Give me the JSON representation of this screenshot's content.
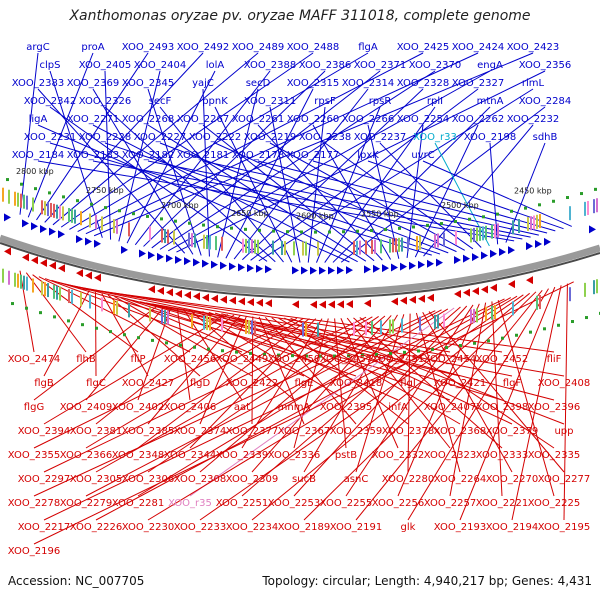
{
  "title": "Xanthomonas oryzae pv. oryzae MAFF 311018, complete genome",
  "accession": "Accession: NC_007705",
  "topology": "Topology: circular; Length: 4,940,217 bp; Genes: 4,431",
  "colors": {
    "forward": "#0000cc",
    "reverse": "#d40000",
    "rna_fwd": "#00aacc",
    "rna_rev": "#e080c0",
    "backbone": "#888888"
  },
  "ticks": [
    "2800 kbp",
    "2750 kbp",
    "2700 kbp",
    "2650 kbp",
    "2600 kbp",
    "2550 kbp",
    "2500 kbp",
    "2450 kbp"
  ],
  "forward_labels": [
    "argC",
    "proA",
    "XOO_2493",
    "XOO_2492",
    "XOO_2489",
    "XOO_2488",
    "flgA",
    "XOO_2425",
    "XOO_2424",
    "XOO_2423",
    "clpS",
    "XOO_2405",
    "XOO_2404",
    "lolA",
    "XOO_2388",
    "XOO_2386",
    "XOO_2371",
    "XOO_2370",
    "engA",
    "XOO_2356",
    "XOO_2383",
    "XOO_2369",
    "XOO_2345",
    "yajC",
    "secD",
    "XOO_2315",
    "XOO_2314",
    "XOO_2328",
    "XOO_2327",
    "rlmL",
    "XOO_2342",
    "XOO_2326",
    "secF",
    "ppnK",
    "XOO_2311",
    "rpsF",
    "rpsR",
    "rplI",
    "mtnA",
    "XOO_2284",
    "ligA",
    "XOO_2271",
    "XOO_2268",
    "XOO_2267",
    "XOO_2261",
    "XOO_2260",
    "XOO_2266",
    "XOO_2254",
    "XOO_2262",
    "XOO_2232",
    "XOO_2231",
    "XOO_2228",
    "XOO_2227",
    "XOO_2222",
    "XOO_2219",
    "XOO_2238",
    "XOO_2237",
    "XOO_r33",
    "XOO_2198",
    "sdhB",
    "XOO_2184",
    "XOO_2183",
    "XOO_2182",
    "XOO_2181",
    "XOO_2178",
    "XOO_2177",
    "lpxK",
    "uvrC"
  ],
  "reverse_labels": [
    "XOO_2474",
    "flhB",
    "fliP",
    "XOO_2456",
    "XOO_2449",
    "XOO_2450",
    "XOO_2457",
    "XOO_2451",
    "XOO_2454",
    "XOO_2452",
    "fliF",
    "flgB",
    "flgC",
    "XOO_2427",
    "flgD",
    "XOO_2422",
    "flgE",
    "XOO_2418",
    "flgI",
    "XOO_2421",
    "flgF",
    "XOO_2408",
    "flgG",
    "XOO_2409",
    "XOO_2402",
    "XOO_2406",
    "aat",
    "mnmA",
    "XOO_2395",
    "infA",
    "XOO_2407",
    "XOO_2398",
    "XOO_2396",
    "XOO_2394",
    "XOO_2381",
    "XOO_2385",
    "XOO_2374",
    "XOO_2377",
    "XOO_2367",
    "XOO_2359",
    "XOO_2378",
    "XOO_2368",
    "XOO_2379",
    "upp",
    "XOO_2355",
    "XOO_2366",
    "XOO_2348",
    "XOO_2344",
    "XOO_2339",
    "XOO_2336",
    "pstB",
    "XOO_2332",
    "XOO_2323",
    "XOO_2333",
    "XOO_2335",
    "XOO_2297",
    "XOO_2305",
    "XOO_2306",
    "XOO_2308",
    "XOO_2309",
    "sucB",
    "asnC",
    "XOO_2280",
    "XOO_2264",
    "XOO_2270",
    "XOO_2277",
    "XOO_2278",
    "XOO_2279",
    "XOO_2281",
    "XOO_r35",
    "XOO_2251",
    "XOO_2253",
    "XOO_2255",
    "XOO_2256",
    "XOO_2257",
    "XOO_2221",
    "XOO_2225",
    "XOO_2217",
    "XOO_2226",
    "XOO_2230",
    "XOO_2233",
    "XOO_2234",
    "XOO_2189",
    "XOO_2191",
    "glk",
    "XOO_2193",
    "XOO_2194",
    "XOO_2195",
    "XOO_2196"
  ]
}
